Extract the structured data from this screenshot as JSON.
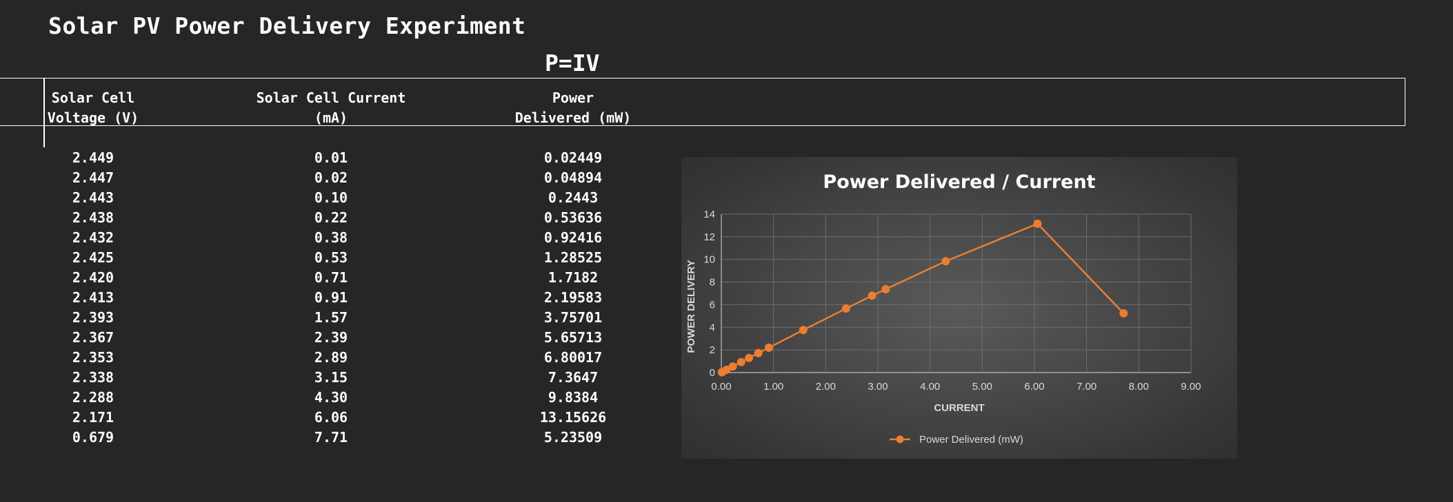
{
  "title": "Solar PV Power Delivery Experiment",
  "formula": "P=IV",
  "table": {
    "headers": [
      {
        "line1": "Solar Cell",
        "line2": "Voltage (V)"
      },
      {
        "line1": "Solar Cell Current",
        "line2": "(mA)"
      },
      {
        "line1": "Power",
        "line2": "Delivered (mW)"
      }
    ],
    "rows": [
      [
        "2.449",
        "0.01",
        "0.02449"
      ],
      [
        "2.447",
        "0.02",
        "0.04894"
      ],
      [
        "2.443",
        "0.10",
        "0.2443"
      ],
      [
        "2.438",
        "0.22",
        "0.53636"
      ],
      [
        "2.432",
        "0.38",
        "0.92416"
      ],
      [
        "2.425",
        "0.53",
        "1.28525"
      ],
      [
        "2.420",
        "0.71",
        "1.7182"
      ],
      [
        "2.413",
        "0.91",
        "2.19583"
      ],
      [
        "2.393",
        "1.57",
        "3.75701"
      ],
      [
        "2.367",
        "2.39",
        "5.65713"
      ],
      [
        "2.353",
        "2.89",
        "6.80017"
      ],
      [
        "2.338",
        "3.15",
        "7.3647"
      ],
      [
        "2.288",
        "4.30",
        "9.8384"
      ],
      [
        "2.171",
        "6.06",
        "13.15626"
      ],
      [
        "0.679",
        "7.71",
        "5.23509"
      ]
    ]
  },
  "chart_data": {
    "type": "line",
    "title": "Power Delivered / Current",
    "xlabel": "CURRENT",
    "ylabel": "POWER DELIVERY",
    "xlim": [
      0,
      9
    ],
    "ylim": [
      0,
      14
    ],
    "x_ticks": [
      "0.00",
      "1.00",
      "2.00",
      "3.00",
      "4.00",
      "5.00",
      "6.00",
      "7.00",
      "8.00",
      "9.00"
    ],
    "y_ticks": [
      "0",
      "2",
      "4",
      "6",
      "8",
      "10",
      "12",
      "14"
    ],
    "grid": true,
    "legend_position": "bottom",
    "series": [
      {
        "name": "Power Delivered (mW)",
        "color": "#ed7d31",
        "x": [
          0.01,
          0.02,
          0.1,
          0.22,
          0.38,
          0.53,
          0.71,
          0.91,
          1.57,
          2.39,
          2.89,
          3.15,
          4.3,
          6.06,
          7.71
        ],
        "y": [
          0.02449,
          0.04894,
          0.2443,
          0.53636,
          0.92416,
          1.28525,
          1.7182,
          2.19583,
          3.75701,
          5.65713,
          6.80017,
          7.3647,
          9.8384,
          13.15626,
          5.23509
        ]
      }
    ]
  }
}
